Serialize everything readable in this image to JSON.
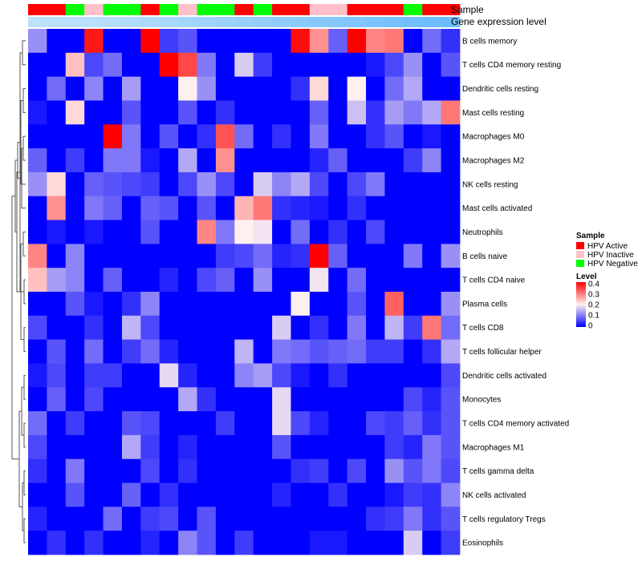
{
  "chart_data": {
    "type": "heatmap",
    "title": "",
    "annotation_tracks": [
      "Sample",
      "Gene expression level"
    ],
    "rows": [
      "B cells memory",
      "T cells CD4 memory resting",
      "Dendritic cells resting",
      "Mast cells resting",
      "Macrophages M0",
      "Macrophages M2",
      "NK cells resting",
      "Mast cells activated",
      "Neutrophils",
      "B cells naive",
      "T cells CD4 naive",
      "Plasma cells",
      "T cells CD8",
      "T cells follicular helper",
      "Dendritic cells activated",
      "Monocytes",
      "T cells CD4 memory activated",
      "Macrophages M1",
      "T cells gamma delta",
      "NK cells activated",
      "T cells regulatory  Tregs",
      "Eosinophils"
    ],
    "sample_groups": [
      "HPV Active",
      "HPV Active",
      "HPV Negative",
      "HPV Inactive",
      "HPV Negative",
      "HPV Negative",
      "HPV Active",
      "HPV Negative",
      "HPV Inactive",
      "HPV Negative",
      "HPV Negative",
      "HPV Active",
      "HPV Negative",
      "HPV Active",
      "HPV Active",
      "HPV Inactive",
      "HPV Inactive",
      "HPV Active",
      "HPV Active",
      "HPV Active",
      "HPV Negative",
      "HPV Active",
      "HPV Active"
    ],
    "expression_level": [
      0.1,
      0.12,
      0.14,
      0.16,
      0.2,
      0.24,
      0.28,
      0.32,
      0.36,
      0.4,
      0.44,
      0.48,
      0.52,
      0.56,
      0.6,
      0.64,
      0.68,
      0.72,
      0.76,
      0.8,
      0.84,
      0.88,
      0.92
    ],
    "values": [
      [
        0.12,
        0,
        0,
        0.38,
        0,
        0,
        0.4,
        0.05,
        0.07,
        0,
        0,
        0,
        0,
        0,
        0.39,
        0.28,
        0.08,
        0.4,
        0.29,
        0.3,
        0,
        0.09,
        0.04
      ],
      [
        0,
        0,
        0.24,
        0.06,
        0.09,
        0,
        0,
        0.4,
        0.34,
        0.1,
        0,
        0.17,
        0.05,
        0,
        0,
        0,
        0,
        0,
        0.02,
        0.06,
        0.12,
        0,
        0.07
      ],
      [
        0,
        0.09,
        0,
        0.11,
        0,
        0.13,
        0,
        0,
        0.2,
        0.12,
        0,
        0,
        0,
        0,
        0.04,
        0.22,
        0,
        0.2,
        0,
        0.09,
        0.14,
        0,
        0
      ],
      [
        0.02,
        0,
        0.22,
        0,
        0,
        0.07,
        0,
        0,
        0.07,
        0,
        0.04,
        0,
        0,
        0,
        0,
        0.08,
        0,
        0.16,
        0.04,
        0.13,
        0.1,
        0.14,
        0.3
      ],
      [
        0,
        0,
        0,
        0,
        0.4,
        0.1,
        0,
        0.07,
        0,
        0.04,
        0.33,
        0.09,
        0,
        0.04,
        0,
        0.1,
        0,
        0,
        0.04,
        0.07,
        0,
        0.02,
        0
      ],
      [
        0.08,
        0,
        0.05,
        0,
        0.1,
        0.1,
        0.02,
        0,
        0.14,
        0,
        0.28,
        0,
        0,
        0,
        0,
        0.03,
        0.08,
        0,
        0,
        0,
        0.05,
        0.11,
        0
      ],
      [
        0.12,
        0.22,
        0,
        0.08,
        0.07,
        0.06,
        0.05,
        0,
        0.06,
        0.12,
        0.06,
        0,
        0.17,
        0.11,
        0.14,
        0.06,
        0,
        0.06,
        0.1,
        0,
        0,
        0,
        0
      ],
      [
        0,
        0.28,
        0,
        0.1,
        0.08,
        0,
        0.08,
        0.07,
        0,
        0.07,
        0,
        0.25,
        0.3,
        0.04,
        0.03,
        0.02,
        0,
        0.04,
        0,
        0,
        0,
        0,
        0
      ],
      [
        0,
        0.02,
        0,
        0.02,
        0,
        0,
        0.07,
        0,
        0,
        0.29,
        0.1,
        0.2,
        0.19,
        0,
        0.09,
        0,
        0.04,
        0,
        0.06,
        0,
        0,
        0,
        0
      ],
      [
        0.29,
        0,
        0.11,
        0,
        0,
        0,
        0,
        0,
        0,
        0,
        0.05,
        0.06,
        0.09,
        0.03,
        0.04,
        0.4,
        0.08,
        0,
        0,
        0,
        0.1,
        0,
        0.12
      ],
      [
        0.24,
        0.13,
        0.11,
        0,
        0.08,
        0,
        0,
        0.03,
        0,
        0.06,
        0.08,
        0,
        0.12,
        0,
        0,
        0.19,
        0,
        0.09,
        0,
        0,
        0,
        0,
        0
      ],
      [
        0,
        0,
        0.07,
        0.02,
        0,
        0.04,
        0.11,
        0,
        0,
        0,
        0,
        0,
        0,
        0,
        0.2,
        0,
        0,
        0.07,
        0,
        0.32,
        0,
        0,
        0.12
      ],
      [
        0.06,
        0,
        0,
        0.04,
        0,
        0.15,
        0.06,
        0,
        0,
        0,
        0,
        0,
        0,
        0.17,
        0,
        0.04,
        0,
        0.1,
        0,
        0.15,
        0.05,
        0.3,
        0.09
      ],
      [
        0,
        0.07,
        0,
        0.09,
        0,
        0.05,
        0.09,
        0.03,
        0,
        0,
        0,
        0.15,
        0,
        0.1,
        0.09,
        0.07,
        0.08,
        0.09,
        0.05,
        0.05,
        0,
        0.04,
        0.14
      ],
      [
        0.02,
        0.06,
        0,
        0.05,
        0.05,
        0,
        0,
        0.18,
        0.03,
        0,
        0,
        0.11,
        0.13,
        0.06,
        0.02,
        0,
        0.04,
        0,
        0,
        0,
        0,
        0,
        0.06
      ],
      [
        0,
        0.08,
        0,
        0.06,
        0,
        0,
        0,
        0,
        0.14,
        0.04,
        0,
        0,
        0,
        0.18,
        0,
        0,
        0,
        0,
        0,
        0,
        0.06,
        0.03,
        0.07
      ],
      [
        0.09,
        0,
        0.05,
        0,
        0,
        0.07,
        0.06,
        0,
        0,
        0,
        0.05,
        0,
        0,
        0.18,
        0.06,
        0.03,
        0,
        0,
        0.06,
        0.05,
        0.08,
        0.04,
        0.07
      ],
      [
        0.06,
        0,
        0,
        0,
        0,
        0.14,
        0.05,
        0,
        0.03,
        0,
        0,
        0,
        0,
        0.07,
        0,
        0,
        0,
        0,
        0,
        0.05,
        0.03,
        0.1,
        0.07
      ],
      [
        0.04,
        0,
        0.1,
        0,
        0,
        0,
        0.06,
        0,
        0.04,
        0,
        0,
        0,
        0,
        0,
        0.04,
        0.05,
        0,
        0.06,
        0,
        0.12,
        0.07,
        0.1,
        0.06
      ],
      [
        0,
        0,
        0.07,
        0,
        0,
        0.08,
        0,
        0.04,
        0,
        0,
        0,
        0,
        0,
        0.03,
        0,
        0,
        0.04,
        0,
        0,
        0.02,
        0.05,
        0.04,
        0.11
      ],
      [
        0.03,
        0,
        0,
        0,
        0.09,
        0,
        0.05,
        0.06,
        0,
        0.07,
        0,
        0,
        0,
        0,
        0,
        0,
        0,
        0,
        0.04,
        0.05,
        0.1,
        0.04,
        0.07
      ],
      [
        0,
        0.04,
        0,
        0.04,
        0,
        0,
        0.03,
        0,
        0.11,
        0.07,
        0,
        0.05,
        0,
        0,
        0,
        0.02,
        0.02,
        0,
        0,
        0,
        0.17,
        0,
        0.05
      ]
    ],
    "legend": {
      "sample_title": "Sample",
      "sample_entries": [
        {
          "label": "HPV Active",
          "color": "#ff0000"
        },
        {
          "label": "HPV Inactive",
          "color": "#ffc0cb"
        },
        {
          "label": "HPV Negative",
          "color": "#00ff00"
        }
      ],
      "level_title": "Level",
      "level_ticks": [
        "0.4",
        "0.3",
        "0.2",
        "0.1",
        "0"
      ],
      "level_range": [
        0,
        0.4
      ]
    },
    "colors": {
      "low": "#0000ff",
      "mid": "#fff0f0",
      "high": "#ff0000",
      "expression_light": "#c8e6fa",
      "expression_dark": "#63b8ff",
      "dendrogram": "#555555"
    }
  }
}
